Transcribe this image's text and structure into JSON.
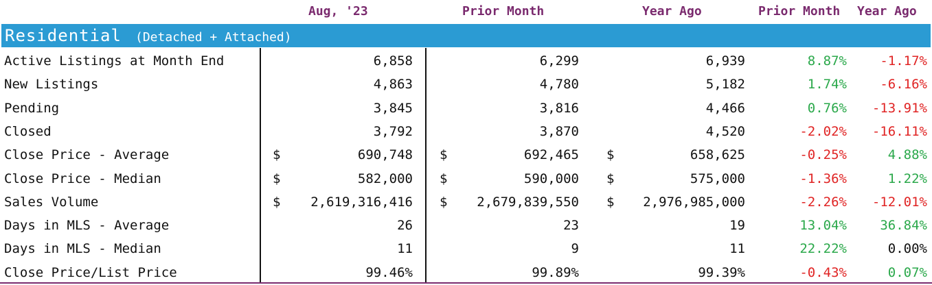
{
  "header": {
    "col1": "Aug, '23",
    "col2": "Prior Month",
    "col3": "Year Ago",
    "col4": "Prior Month",
    "col5": "Year Ago"
  },
  "section": {
    "title": "Residential",
    "subtitle": "(Detached + Attached)"
  },
  "rows": [
    {
      "label": "Active Listings at Month End",
      "cur_dollar": "",
      "cur": "6,858",
      "prior_dollar": "",
      "prior": "6,299",
      "year_dollar": "",
      "year": "6,939",
      "pm_change": "8.87%",
      "pm_status": "pos",
      "ya_change": "-1.17%",
      "ya_status": "neg"
    },
    {
      "label": "New Listings",
      "cur_dollar": "",
      "cur": "4,863",
      "prior_dollar": "",
      "prior": "4,780",
      "year_dollar": "",
      "year": "5,182",
      "pm_change": "1.74%",
      "pm_status": "pos",
      "ya_change": "-6.16%",
      "ya_status": "neg"
    },
    {
      "label": "Pending",
      "cur_dollar": "",
      "cur": "3,845",
      "prior_dollar": "",
      "prior": "3,816",
      "year_dollar": "",
      "year": "4,466",
      "pm_change": "0.76%",
      "pm_status": "pos",
      "ya_change": "-13.91%",
      "ya_status": "neg"
    },
    {
      "label": "Closed",
      "cur_dollar": "",
      "cur": "3,792",
      "prior_dollar": "",
      "prior": "3,870",
      "year_dollar": "",
      "year": "4,520",
      "pm_change": "-2.02%",
      "pm_status": "neg",
      "ya_change": "-16.11%",
      "ya_status": "neg"
    },
    {
      "label": "Close Price - Average",
      "cur_dollar": "$",
      "cur": "690,748",
      "prior_dollar": "$",
      "prior": "692,465",
      "year_dollar": "$",
      "year": "658,625",
      "pm_change": "-0.25%",
      "pm_status": "neg",
      "ya_change": "4.88%",
      "ya_status": "pos"
    },
    {
      "label": "Close Price - Median",
      "cur_dollar": "$",
      "cur": "582,000",
      "prior_dollar": "$",
      "prior": "590,000",
      "year_dollar": "$",
      "year": "575,000",
      "pm_change": "-1.36%",
      "pm_status": "neg",
      "ya_change": "1.22%",
      "ya_status": "pos"
    },
    {
      "label": "Sales Volume",
      "cur_dollar": "$",
      "cur": "2,619,316,416",
      "prior_dollar": "$",
      "prior": "2,679,839,550",
      "year_dollar": "$",
      "year": "2,976,985,000",
      "pm_change": "-2.26%",
      "pm_status": "neg",
      "ya_change": "-12.01%",
      "ya_status": "neg"
    },
    {
      "label": "Days in MLS - Average",
      "cur_dollar": "",
      "cur": "26",
      "prior_dollar": "",
      "prior": "23",
      "year_dollar": "",
      "year": "19",
      "pm_change": "13.04%",
      "pm_status": "pos",
      "ya_change": "36.84%",
      "ya_status": "pos"
    },
    {
      "label": "Days in MLS - Median",
      "cur_dollar": "",
      "cur": "11",
      "prior_dollar": "",
      "prior": "9",
      "year_dollar": "",
      "year": "11",
      "pm_change": "22.22%",
      "pm_status": "pos",
      "ya_change": "0.00%",
      "ya_status": "zero"
    },
    {
      "label": "Close Price/List Price",
      "cur_dollar": "",
      "cur": "99.46%",
      "prior_dollar": "",
      "prior": "99.89%",
      "year_dollar": "",
      "year": "99.39%",
      "pm_change": "-0.43%",
      "pm_status": "neg",
      "ya_change": "0.07%",
      "ya_status": "pos"
    }
  ],
  "colors": {
    "header_text": "#7a2a6e",
    "section_bar": "#2b9bd3",
    "positive": "#2aa84a",
    "negative": "#e02424"
  }
}
